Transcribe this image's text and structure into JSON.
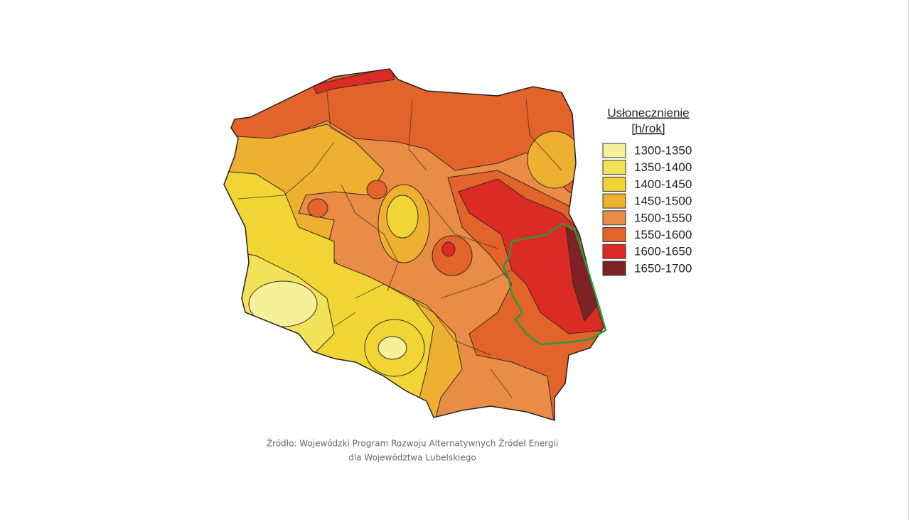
{
  "legend": {
    "title": "Usłonecznienie",
    "unit": "[h/rok]",
    "items": [
      {
        "label": "1300-1350",
        "color": "#f7f09a"
      },
      {
        "label": "1350-1400",
        "color": "#f2e25a"
      },
      {
        "label": "1400-1450",
        "color": "#f0d535"
      },
      {
        "label": "1450-1500",
        "color": "#eeb030"
      },
      {
        "label": "1500-1550",
        "color": "#e98c45"
      },
      {
        "label": "1550-1600",
        "color": "#e2642a"
      },
      {
        "label": "1600-1650",
        "color": "#dc2a25"
      },
      {
        "label": "1650-1700",
        "color": "#7f2226"
      }
    ]
  },
  "caption": {
    "line1": "Źródło: Wojewódzki Program Rozwoju Alternatywnych Źródeł Energii",
    "line2": "dla Województwa Lubelskiego"
  }
}
